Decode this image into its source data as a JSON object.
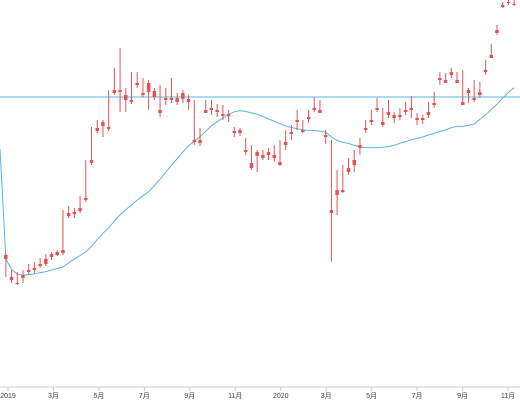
{
  "chart_data": {
    "type": "candlestick",
    "title": "",
    "xlabel": "",
    "ylabel": "",
    "grid": false,
    "x_tick_labels": [
      "2019",
      "3月",
      "5月",
      "7月",
      "9月",
      "11月",
      "2020",
      "3月",
      "5月",
      "7月",
      "9月",
      "11月"
    ],
    "ylim": [
      0,
      400
    ],
    "level_line": 97,
    "colors": {
      "up": "#22a06b",
      "down": "#e15455",
      "line": "#5ab4dc",
      "axis": "#cccccc"
    },
    "candles": [
      [
        255,
        259,
        253,
        277
      ],
      [
        277,
        280,
        270,
        283
      ],
      [
        283,
        284,
        272,
        285
      ],
      [
        275,
        278,
        270,
        283
      ],
      [
        270,
        272,
        264,
        275
      ],
      [
        268,
        270,
        262,
        273
      ],
      [
        264,
        266,
        258,
        268
      ],
      [
        259,
        264,
        254,
        266
      ],
      [
        254,
        257,
        252,
        260
      ],
      [
        252,
        255,
        250,
        256
      ],
      [
        250,
        253,
        210,
        255
      ],
      [
        213,
        216,
        206,
        218
      ],
      [
        212,
        214,
        208,
        218
      ],
      [
        208,
        211,
        196,
        213
      ],
      [
        198,
        200,
        160,
        202
      ],
      [
        160,
        163,
        127,
        165
      ],
      [
        128,
        131,
        120,
        133
      ],
      [
        122,
        126,
        120,
        137
      ],
      [
        127,
        129,
        90,
        131
      ],
      [
        90,
        93,
        68,
        95
      ],
      [
        90,
        92,
        48,
        112
      ],
      [
        95,
        100,
        88,
        112
      ],
      [
        100,
        102,
        72,
        104
      ],
      [
        83,
        85,
        72,
        88
      ],
      [
        93,
        95,
        78,
        97
      ],
      [
        83,
        92,
        80,
        110
      ],
      [
        91,
        97,
        88,
        100
      ],
      [
        110,
        113,
        85,
        117
      ],
      [
        98,
        100,
        88,
        105
      ],
      [
        98,
        100,
        78,
        103
      ],
      [
        98,
        102,
        93,
        105
      ],
      [
        93,
        99,
        90,
        103
      ],
      [
        99,
        102,
        95,
        110
      ],
      [
        140,
        142,
        100,
        145
      ],
      [
        140,
        143,
        128,
        146
      ],
      [
        110,
        113,
        100,
        113
      ],
      [
        108,
        110,
        100,
        115
      ],
      [
        110,
        112,
        104,
        117
      ],
      [
        114,
        116,
        105,
        120
      ],
      [
        114,
        116,
        110,
        122
      ],
      [
        131,
        133,
        127,
        137
      ],
      [
        130,
        133,
        128,
        136
      ],
      [
        150,
        152,
        138,
        155
      ],
      [
        163,
        168,
        145,
        170
      ],
      [
        152,
        156,
        150,
        172
      ],
      [
        155,
        158,
        150,
        160
      ],
      [
        152,
        155,
        148,
        160
      ],
      [
        155,
        158,
        145,
        162
      ],
      [
        162,
        165,
        140,
        166
      ],
      [
        142,
        145,
        130,
        150
      ],
      [
        132,
        134,
        125,
        140
      ],
      [
        120,
        122,
        110,
        130
      ],
      [
        130,
        132,
        120,
        133
      ],
      [
        117,
        119,
        110,
        123
      ],
      [
        108,
        110,
        97,
        112
      ],
      [
        110,
        113,
        100,
        113
      ],
      [
        135,
        137,
        130,
        144
      ],
      [
        210,
        213,
        140,
        262
      ],
      [
        190,
        195,
        170,
        215
      ],
      [
        190,
        192,
        165,
        193
      ],
      [
        168,
        172,
        158,
        175
      ],
      [
        160,
        165,
        150,
        172
      ],
      [
        145,
        148,
        138,
        155
      ],
      [
        128,
        130,
        120,
        133
      ],
      [
        120,
        122,
        110,
        125
      ],
      [
        108,
        110,
        98,
        112
      ],
      [
        122,
        125,
        108,
        127
      ],
      [
        112,
        115,
        100,
        118
      ],
      [
        115,
        118,
        112,
        123
      ],
      [
        115,
        117,
        108,
        120
      ],
      [
        110,
        112,
        102,
        115
      ],
      [
        108,
        110,
        96,
        118
      ],
      [
        118,
        120,
        113,
        125
      ],
      [
        118,
        120,
        115,
        124
      ],
      [
        112,
        115,
        102,
        118
      ],
      [
        103,
        105,
        92,
        108
      ],
      [
        78,
        80,
        72,
        85
      ],
      [
        80,
        83,
        73,
        83
      ],
      [
        72,
        75,
        68,
        78
      ],
      [
        80,
        83,
        72,
        83
      ],
      [
        102,
        105,
        70,
        105
      ],
      [
        90,
        93,
        88,
        103
      ],
      [
        98,
        100,
        80,
        102
      ],
      [
        92,
        95,
        82,
        98
      ],
      [
        70,
        72,
        60,
        75
      ],
      [
        55,
        58,
        44,
        58
      ],
      [
        30,
        33,
        25,
        35
      ],
      [
        5,
        7,
        2,
        8
      ],
      [
        2,
        3,
        0,
        5
      ],
      [
        4,
        5,
        0,
        6
      ]
    ]
  }
}
